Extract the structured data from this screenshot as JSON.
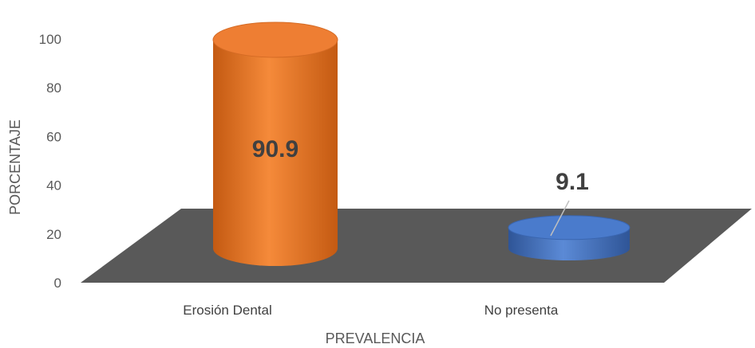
{
  "chart_data": {
    "type": "bar",
    "categories": [
      "Erosión Dental",
      "No presenta"
    ],
    "values": [
      90.9,
      9.1
    ],
    "value_labels": [
      "90.9",
      "9.1"
    ],
    "xlabel": "PREVALENCIA",
    "ylabel": "PORCENTAJE",
    "ylim": [
      0,
      100
    ],
    "yticks": [
      "0",
      "20",
      "40",
      "60",
      "80",
      "100"
    ],
    "grid": false,
    "legend": "none",
    "style": "3d-cylinder",
    "colors": {
      "Erosión Dental": "#ED7D31",
      "No presenta": "#4472C4",
      "floor": "#595959"
    }
  }
}
